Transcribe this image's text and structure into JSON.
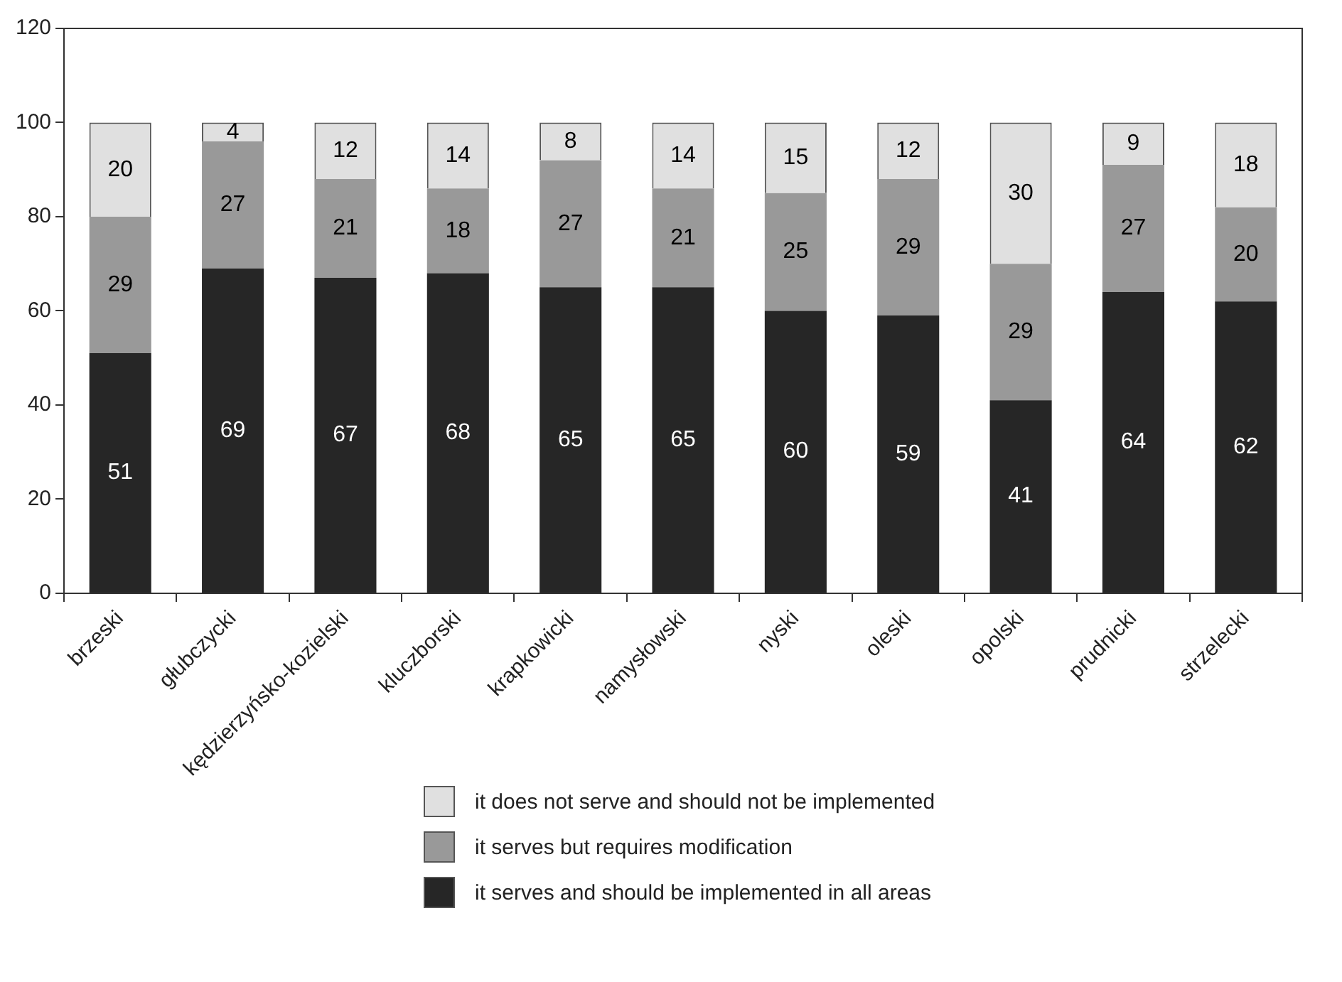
{
  "chart_data": {
    "type": "bar",
    "stacked": true,
    "categories": [
      "brzeski",
      "głubczycki",
      "kędzierzyńsko-kozielski",
      "kluczborski",
      "krapkowicki",
      "namysłowski",
      "nyski",
      "oleski",
      "opolski",
      "prudnicki",
      "strzelecki"
    ],
    "series": [
      {
        "name": "it serves and should be implemented in all areas",
        "color": "#262626",
        "values": [
          51,
          69,
          67,
          68,
          65,
          65,
          60,
          59,
          41,
          64,
          62
        ]
      },
      {
        "name": "it serves but requires modification",
        "color": "#999999",
        "values": [
          29,
          27,
          21,
          18,
          27,
          21,
          25,
          29,
          29,
          27,
          20
        ]
      },
      {
        "name": "it does not serve and should not be implemented",
        "color": "#e0e0e0",
        "values": [
          20,
          4,
          12,
          14,
          8,
          14,
          15,
          12,
          30,
          9,
          18
        ]
      }
    ],
    "ylim": [
      0,
      120
    ],
    "yticks": [
      0,
      20,
      40,
      60,
      80,
      100,
      120
    ],
    "grid": false,
    "legend": "bottom",
    "data_labels": true
  }
}
